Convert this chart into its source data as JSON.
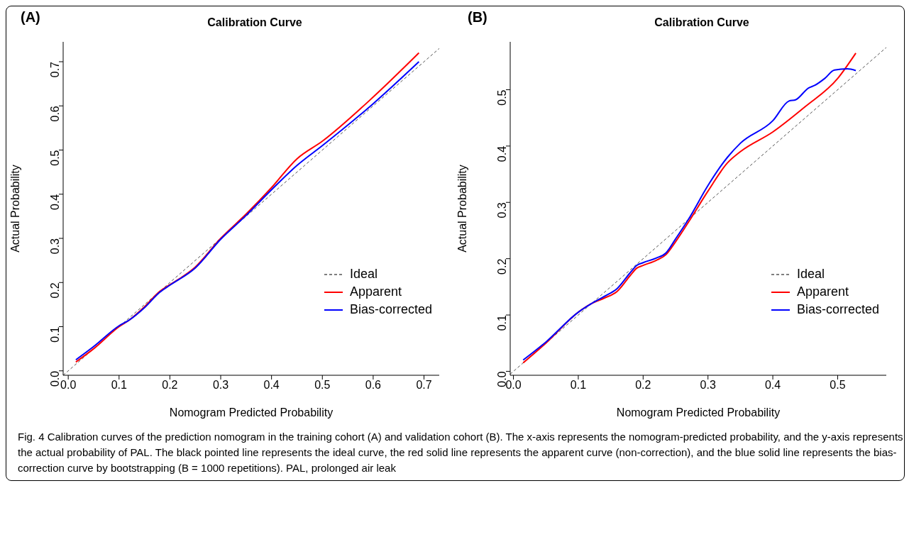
{
  "chart_data": [
    {
      "type": "line",
      "title": "Calibration Curve",
      "annotations": [
        "(A)"
      ],
      "xlabel": "Nomogram Predicted Probability",
      "ylabel": "Actual Probability",
      "xlim": [
        -0.01,
        0.73
      ],
      "ylim": [
        -0.01,
        0.745
      ],
      "xticks": [
        {
          "value": 0,
          "label": "0.0"
        },
        0.1,
        0.2,
        0.3,
        0.4,
        0.5,
        0.6,
        0.7
      ],
      "yticks": [
        {
          "value": 0,
          "label": "0.0"
        },
        0.1,
        0.2,
        0.3,
        0.4,
        0.5,
        0.6,
        0.7
      ],
      "legend": "bottom right",
      "marker": "none",
      "series": [
        {
          "name": "Ideal",
          "color": "#555555",
          "line_style": "dashed",
          "x": [
            -0.01,
            0.73
          ],
          "values": [
            -0.01,
            0.73
          ]
        },
        {
          "name": "Apparent",
          "color": "#ff0000",
          "line_style": "solid",
          "x": [
            0.015,
            0.05,
            0.1,
            0.12,
            0.15,
            0.18,
            0.2,
            0.25,
            0.3,
            0.35,
            0.4,
            0.45,
            0.5,
            0.6,
            0.69
          ],
          "values": [
            0.02,
            0.05,
            0.1,
            0.115,
            0.145,
            0.18,
            0.195,
            0.235,
            0.3,
            0.355,
            0.415,
            0.48,
            0.52,
            0.62,
            0.72
          ]
        },
        {
          "name": "Bias-corrected",
          "color": "#0000ff",
          "line_style": "solid",
          "x": [
            0.015,
            0.05,
            0.1,
            0.12,
            0.15,
            0.18,
            0.2,
            0.25,
            0.3,
            0.35,
            0.4,
            0.45,
            0.5,
            0.6,
            0.69
          ],
          "values": [
            0.025,
            0.055,
            0.102,
            0.115,
            0.143,
            0.178,
            0.194,
            0.233,
            0.298,
            0.352,
            0.41,
            0.465,
            0.51,
            0.605,
            0.7
          ]
        }
      ]
    },
    {
      "type": "line",
      "title": "Calibration Curve",
      "annotations": [
        "(B)"
      ],
      "xlabel": "Nomogram Predicted Probability",
      "ylabel": "Actual Probability",
      "xlim": [
        -0.005,
        0.575
      ],
      "ylim": [
        -0.007,
        0.585
      ],
      "xticks": [
        {
          "value": 0,
          "label": "0.0"
        },
        0.1,
        0.2,
        0.3,
        0.4,
        0.5
      ],
      "yticks": [
        {
          "value": 0,
          "label": "0.0"
        },
        0.1,
        0.2,
        0.3,
        0.4,
        0.5
      ],
      "legend": "bottom right",
      "marker": "none",
      "series": [
        {
          "name": "Ideal",
          "color": "#555555",
          "line_style": "dashed",
          "x": [
            -0.005,
            0.575
          ],
          "values": [
            -0.005,
            0.575
          ]
        },
        {
          "name": "Apparent",
          "color": "#ff0000",
          "line_style": "solid",
          "x": [
            0.015,
            0.05,
            0.1,
            0.12,
            0.14,
            0.16,
            0.18,
            0.19,
            0.2,
            0.22,
            0.235,
            0.25,
            0.27,
            0.3,
            0.33,
            0.35,
            0.4,
            0.45,
            0.5,
            0.528
          ],
          "values": [
            0.015,
            0.05,
            0.105,
            0.12,
            0.13,
            0.142,
            0.17,
            0.183,
            0.188,
            0.197,
            0.207,
            0.23,
            0.265,
            0.32,
            0.37,
            0.39,
            0.425,
            0.47,
            0.52,
            0.565
          ]
        },
        {
          "name": "Bias-corrected",
          "color": "#0000ff",
          "line_style": "solid",
          "x": [
            0.015,
            0.05,
            0.1,
            0.12,
            0.14,
            0.16,
            0.18,
            0.19,
            0.2,
            0.22,
            0.235,
            0.25,
            0.27,
            0.3,
            0.33,
            0.35,
            0.4,
            0.425,
            0.435,
            0.455,
            0.465,
            0.48,
            0.495,
            0.515,
            0.528
          ],
          "values": [
            0.02,
            0.052,
            0.105,
            0.12,
            0.133,
            0.147,
            0.175,
            0.188,
            0.193,
            0.201,
            0.21,
            0.235,
            0.27,
            0.33,
            0.38,
            0.405,
            0.445,
            0.48,
            0.482,
            0.503,
            0.508,
            0.52,
            0.535,
            0.537,
            0.534
          ]
        }
      ]
    },
    {
      "type": "other",
      "annotations": [
        "Fig. 4  Calibration curves of the prediction nomogram in the training cohort (A) and validation cohort (B). The x-axis represents the nomogram-predicted probability, and the y-axis represents the actual probability of PAL. The black pointed line represents the ideal curve, the red solid line represents the apparent curve (non-correction), and the blue solid line represents the bias-correction curve by bootstrapping (B = 1000 repetitions). PAL, prolonged air leak"
      ]
    }
  ]
}
